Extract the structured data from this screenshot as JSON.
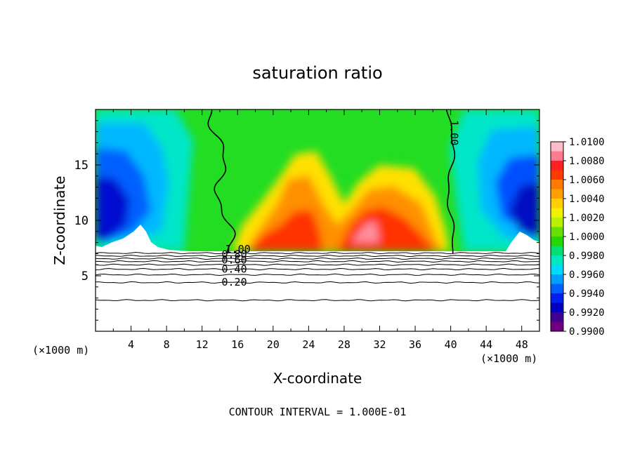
{
  "chart_data": {
    "type": "heatmap",
    "title": "saturation ratio",
    "xlabel": "X-coordinate",
    "ylabel": "Z-coordinate",
    "x_unit_left": "(×1000 m)",
    "x_unit_right": "(×1000 m)",
    "xlim": [
      0,
      50
    ],
    "ylim": [
      0,
      20
    ],
    "x_ticks": [
      "4",
      "8",
      "12",
      "16",
      "20",
      "24",
      "28",
      "32",
      "36",
      "40",
      "44",
      "48"
    ],
    "y_ticks": [
      "5",
      "10",
      "15"
    ],
    "footer": "CONTOUR INTERVAL = 1.000E-01",
    "colorbar": {
      "labels": [
        "1.0100",
        "1.0080",
        "1.0060",
        "1.0040",
        "1.0020",
        "1.0000",
        "0.9980",
        "0.9960",
        "0.9940",
        "0.9920",
        "0.9900"
      ],
      "colors": [
        "#ffbcc8",
        "#ff7a8c",
        "#ff2020",
        "#ff3a00",
        "#ff7a00",
        "#ffa000",
        "#ffd000",
        "#f0f000",
        "#b8f000",
        "#66e000",
        "#22d800",
        "#00e070",
        "#00e8c0",
        "#00d8ff",
        "#00a0ff",
        "#0060ff",
        "#0020f0",
        "#0000c0",
        "#400090",
        "#700080"
      ]
    },
    "contour_labels": [
      {
        "text": "1.00",
        "x": 14.6,
        "z": 7.1
      },
      {
        "text": "0.80",
        "x": 14.2,
        "z": 6.6
      },
      {
        "text": "0.60",
        "x": 14.2,
        "z": 6.1
      },
      {
        "text": "0.40",
        "x": 14.2,
        "z": 5.3
      },
      {
        "text": "0.20",
        "x": 14.2,
        "z": 4.1
      },
      {
        "text": "1.00",
        "x": 40.0,
        "z": 17.9
      }
    ],
    "base_of_shading_km": 7.0,
    "saturation_contour_x_km": [
      15.0,
      40.0
    ]
  }
}
